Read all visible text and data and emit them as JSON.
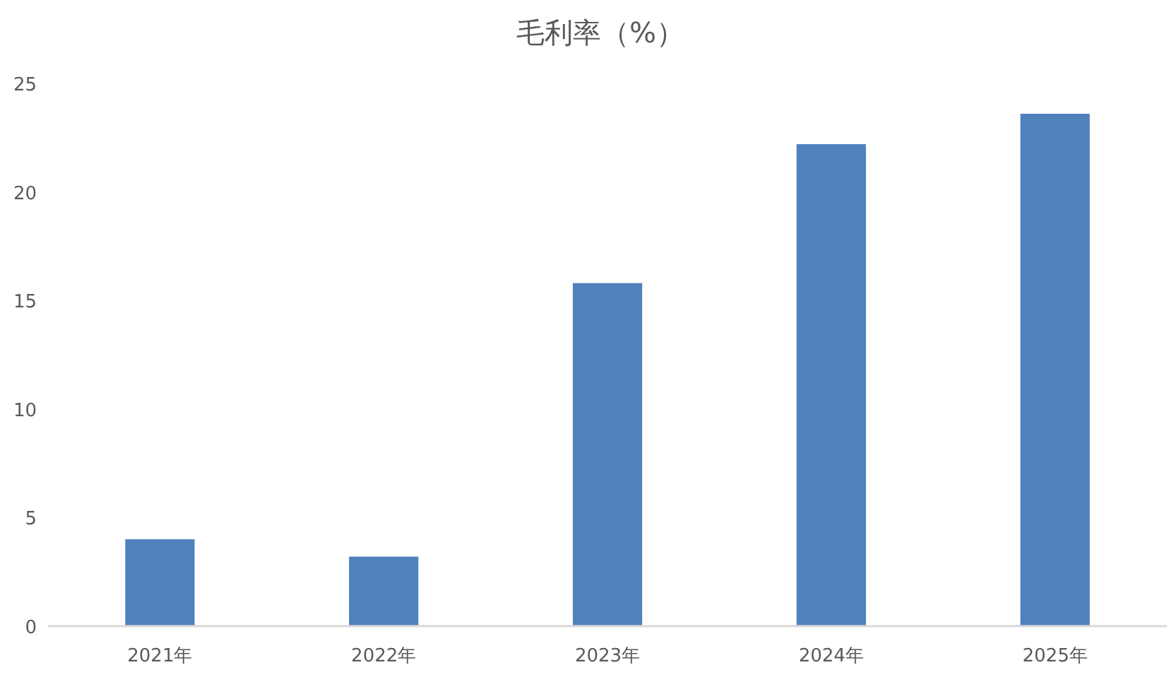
{
  "chart_data": {
    "type": "bar",
    "title": "毛利率（%）",
    "categories": [
      "2021年",
      "2022年",
      "2023年",
      "2024年",
      "2025年"
    ],
    "values": [
      4.0,
      3.2,
      15.8,
      22.2,
      23.6
    ],
    "color": "#4f81bd",
    "ylim": [
      0,
      25
    ],
    "yticks": [
      0,
      5,
      10,
      15,
      20,
      25
    ],
    "grid": false
  }
}
